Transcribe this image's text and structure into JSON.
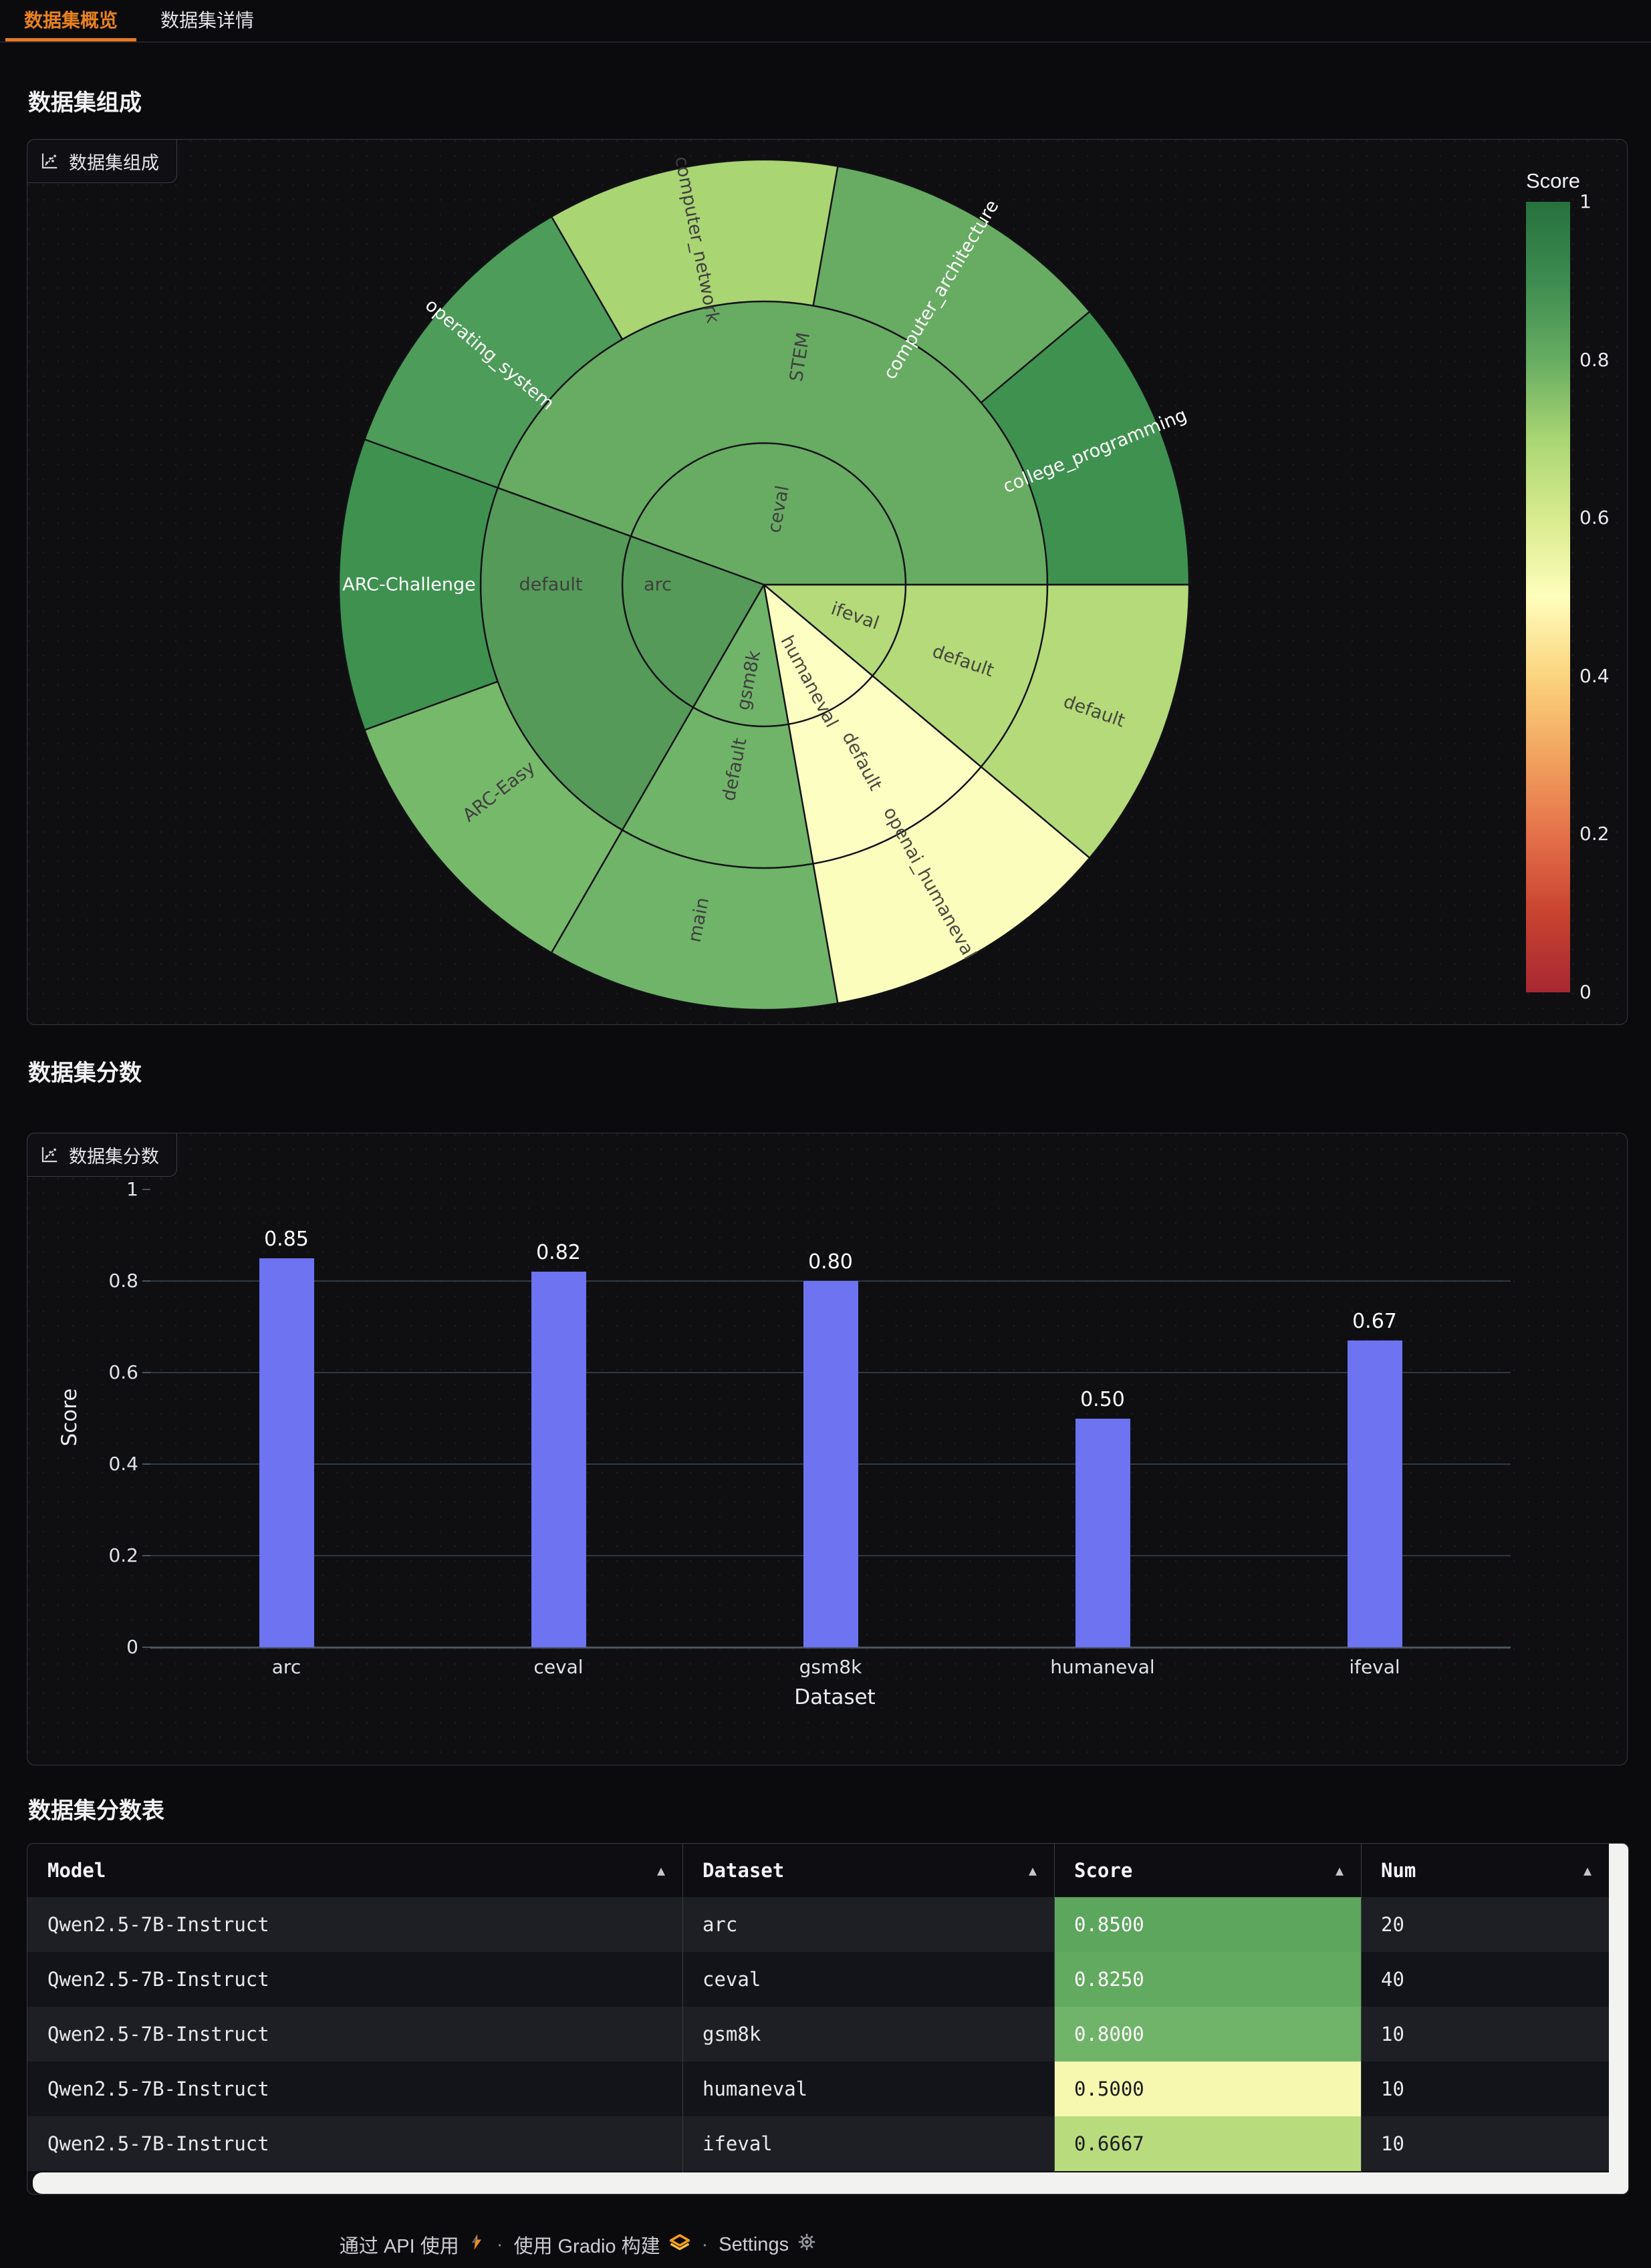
{
  "tabs": [
    {
      "label": "数据集概览",
      "active": true
    },
    {
      "label": "数据集详情",
      "active": false
    }
  ],
  "sections": {
    "composition": {
      "heading": "数据集组成",
      "chip": "数据集组成"
    },
    "scores": {
      "heading": "数据集分数",
      "chip": "数据集分数"
    },
    "score_table": {
      "heading": "数据集分数表"
    }
  },
  "sunburst": {
    "stroke": "#121216",
    "colorbar": {
      "title": "Score",
      "ticks": [
        "1",
        "0.8",
        "0.6",
        "0.4",
        "0.2",
        "0"
      ],
      "stops": [
        [
          0.0,
          "#a72832"
        ],
        [
          0.1,
          "#c84330"
        ],
        [
          0.2,
          "#e4714a"
        ],
        [
          0.3,
          "#f2a45f"
        ],
        [
          0.4,
          "#fbd47f"
        ],
        [
          0.5,
          "#fefebd"
        ],
        [
          0.6,
          "#d8eb8e"
        ],
        [
          0.7,
          "#a9d573"
        ],
        [
          0.8,
          "#67ac62"
        ],
        [
          0.9,
          "#3d8c50"
        ],
        [
          1.0,
          "#27713e"
        ]
      ]
    },
    "rings": [
      [
        0,
        212
      ],
      [
        212,
        424
      ],
      [
        424,
        636
      ]
    ],
    "segments": [
      {
        "label": "ceval",
        "ring": 0,
        "a0": 0,
        "a1": 160,
        "fill": "#67ac62",
        "label_angle": 79,
        "label_r": 115,
        "label_rot": -79,
        "label_color": "#3f3f3f"
      },
      {
        "label": "arc",
        "ring": 0,
        "a0": 160,
        "a1": 240,
        "fill": "#559a58",
        "label_angle": 180,
        "label_r": 159,
        "label_rot": 0,
        "label_color": "#3f3f3f"
      },
      {
        "label": "gsm8k",
        "ring": 0,
        "a0": 240,
        "a1": 280,
        "fill": "#6fb468",
        "label_angle": 261,
        "label_r": 145,
        "label_rot": -79,
        "label_color": "#3f3f3f"
      },
      {
        "label": "humaneval",
        "ring": 0,
        "a0": 280,
        "a1": 320,
        "fill": "#fdfec1",
        "label_angle": 295,
        "label_r": 160,
        "label_rot": 62,
        "label_color": "#4a4a44"
      },
      {
        "label": "ifeval",
        "ring": 0,
        "a0": 320,
        "a1": 360,
        "fill": "#b5da7a",
        "label_angle": 341,
        "label_r": 144,
        "label_rot": 19,
        "label_color": "#44463c"
      },
      {
        "label": "STEM",
        "ring": 1,
        "a0": 0,
        "a1": 160,
        "fill": "#67ac62",
        "label_angle": 81,
        "label_r": 345,
        "label_rot": -81,
        "label_color": "#3f3f3f"
      },
      {
        "label": "default",
        "ring": 1,
        "a0": 160,
        "a1": 240,
        "fill": "#559a58",
        "label_angle": 180,
        "label_r": 319,
        "label_rot": 0,
        "label_color": "#3f3f3f"
      },
      {
        "label": "default",
        "ring": 1,
        "a0": 240,
        "a1": 280,
        "fill": "#6fb468",
        "label_angle": 261,
        "label_r": 280,
        "label_rot": -79,
        "label_color": "#3f3f3f"
      },
      {
        "label": "default",
        "ring": 1,
        "a0": 280,
        "a1": 320,
        "fill": "#fdfec1",
        "label_angle": 299,
        "label_r": 302,
        "label_rot": 62,
        "label_color": "#4a4a44"
      },
      {
        "label": "default",
        "ring": 1,
        "a0": 320,
        "a1": 360,
        "fill": "#b5da7a",
        "label_angle": 339,
        "label_r": 319,
        "label_rot": 19,
        "label_color": "#44463c"
      },
      {
        "label": "college_programming",
        "ring": 2,
        "a0": 0,
        "a1": 40,
        "fill": "#3f9150",
        "label_angle": 22,
        "label_r": 534,
        "label_rot": -22,
        "label_color": "#ffffff"
      },
      {
        "label": "computer_architecture",
        "ring": 2,
        "a0": 40,
        "a1": 80,
        "fill": "#67ac62",
        "label_angle": 59,
        "label_r": 515,
        "label_rot": -59,
        "label_color": "#ffffff"
      },
      {
        "label": "computer_network",
        "ring": 2,
        "a0": 80,
        "a1": 120,
        "fill": "#a9d573",
        "label_angle": 101,
        "label_r": 526,
        "label_rot": 79,
        "label_color": "#3f3f3f"
      },
      {
        "label": "operating_system",
        "ring": 2,
        "a0": 120,
        "a1": 160,
        "fill": "#4d9c59",
        "label_angle": 140,
        "label_r": 536,
        "label_rot": 40,
        "label_color": "#ffffff"
      },
      {
        "label": "ARC-Challenge",
        "ring": 2,
        "a0": 160,
        "a1": 200,
        "fill": "#3f9150",
        "label_angle": 180,
        "label_r": 531,
        "label_rot": 0,
        "label_color": "#ffffff"
      },
      {
        "label": "ARC-Easy",
        "ring": 2,
        "a0": 200,
        "a1": 240,
        "fill": "#77b96a",
        "label_angle": 218,
        "label_r": 503,
        "label_rot": -38,
        "label_color": "#3f3f3f"
      },
      {
        "label": "main",
        "ring": 2,
        "a0": 240,
        "a1": 280,
        "fill": "#6fb468",
        "label_angle": 259,
        "label_r": 511,
        "label_rot": -79,
        "label_color": "#3f3f3f"
      },
      {
        "label": "openai_humaneval",
        "ring": 2,
        "a0": 280,
        "a1": 320,
        "fill": "#fbfdbc",
        "label_angle": 299,
        "label_r": 511,
        "label_rot": 61,
        "label_color": "#4a4a44"
      },
      {
        "label": "default",
        "ring": 2,
        "a0": 320,
        "a1": 360,
        "fill": "#b5da7a",
        "label_angle": 339,
        "label_r": 529,
        "label_rot": 19,
        "label_color": "#44463c"
      }
    ]
  },
  "chart_data": [
    {
      "type": "sunburst",
      "title": "数据集组成",
      "colorbar": {
        "title": "Score",
        "range": [
          0,
          1
        ],
        "colorscale": "RdYlGn"
      },
      "tree": {
        "arc": {
          "default": [
            "ARC-Challenge",
            "ARC-Easy"
          ]
        },
        "ceval": {
          "STEM": [
            "college_programming",
            "computer_architecture",
            "computer_network",
            "operating_system"
          ]
        },
        "gsm8k": {
          "default": [
            "main"
          ]
        },
        "humaneval": {
          "default": [
            "openai_humaneval"
          ]
        },
        "ifeval": {
          "default": [
            "default"
          ]
        }
      },
      "weights": {
        "arc": 20,
        "ceval": 40,
        "gsm8k": 10,
        "humaneval": 10,
        "ifeval": 10
      }
    },
    {
      "type": "bar",
      "title": "数据集分数",
      "categories": [
        "arc",
        "ceval",
        "gsm8k",
        "humaneval",
        "ifeval"
      ],
      "values": [
        0.85,
        0.82,
        0.8,
        0.5,
        0.67
      ],
      "value_labels": [
        "0.85",
        "0.82",
        "0.80",
        "0.50",
        "0.67"
      ],
      "xlabel": "Dataset",
      "ylabel": "Score",
      "ylim": [
        0,
        1
      ],
      "y_ticks": [
        "0",
        "0.2",
        "0.4",
        "0.6",
        "0.8",
        "1"
      ],
      "grid": true,
      "legend": false,
      "bar_color": "#6d73f1"
    },
    {
      "type": "table",
      "columns": [
        "Model",
        "Dataset",
        "Score",
        "Num"
      ],
      "rows": [
        [
          "Qwen2.5-7B-Instruct",
          "arc",
          "0.8500",
          "20"
        ],
        [
          "Qwen2.5-7B-Instruct",
          "ceval",
          "0.8250",
          "40"
        ],
        [
          "Qwen2.5-7B-Instruct",
          "gsm8k",
          "0.8000",
          "10"
        ],
        [
          "Qwen2.5-7B-Instruct",
          "humaneval",
          "0.5000",
          "10"
        ],
        [
          "Qwen2.5-7B-Instruct",
          "ifeval",
          "0.6667",
          "10"
        ]
      ]
    }
  ],
  "table": {
    "headers": [
      {
        "label": "Model",
        "sort_icon": "▲"
      },
      {
        "label": "Dataset",
        "sort_icon": "▲"
      },
      {
        "label": "Score",
        "sort_icon": "▲"
      },
      {
        "label": "Num",
        "sort_icon": "▲"
      }
    ],
    "rows": [
      {
        "model": "Qwen2.5-7B-Instruct",
        "dataset": "arc",
        "score": "0.8500",
        "score_bg": "#5ca65e",
        "score_text": "#ffffff",
        "num": "20"
      },
      {
        "model": "Qwen2.5-7B-Instruct",
        "dataset": "ceval",
        "score": "0.8250",
        "score_bg": "#62aa5f",
        "score_text": "#ffffff",
        "num": "40"
      },
      {
        "model": "Qwen2.5-7B-Instruct",
        "dataset": "gsm8k",
        "score": "0.8000",
        "score_bg": "#6fb469",
        "score_text": "#ffffff",
        "num": "10"
      },
      {
        "model": "Qwen2.5-7B-Instruct",
        "dataset": "humaneval",
        "score": "0.5000",
        "score_bg": "#f6f8af",
        "score_text": "#1c1c1c",
        "num": "10"
      },
      {
        "model": "Qwen2.5-7B-Instruct",
        "dataset": "ifeval",
        "score": "0.6667",
        "score_bg": "#b8dc7d",
        "score_text": "#1c1c1c",
        "num": "10"
      }
    ]
  },
  "footer": {
    "api_label": "通过 API 使用",
    "separator": "·",
    "gradio_label": "使用 Gradio 构建",
    "settings_label": "Settings"
  }
}
